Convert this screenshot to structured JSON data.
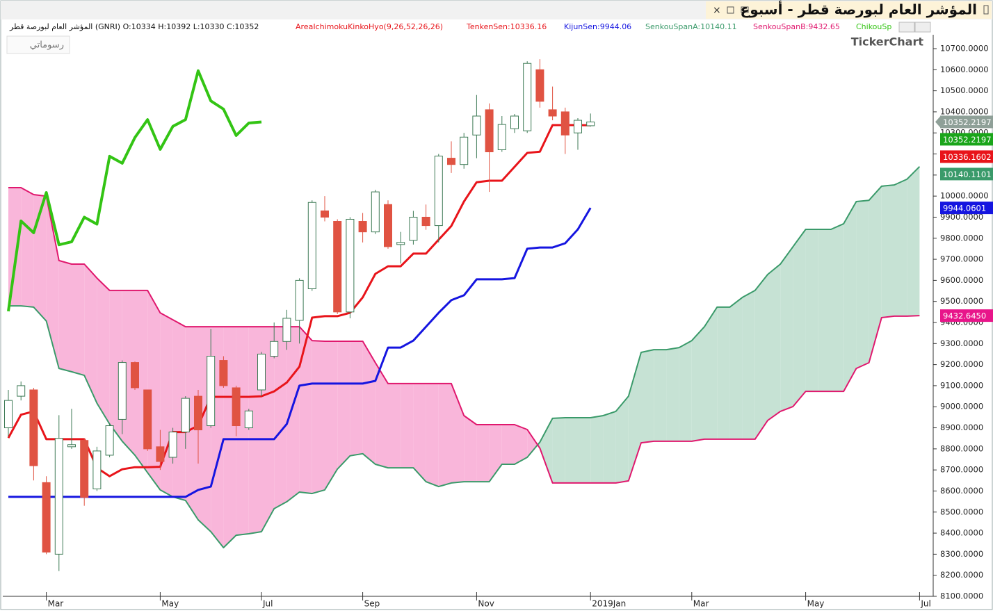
{
  "chart_data": {
    "type": "candlestick",
    "title": "المؤشر العام لبورصة قطر - أسبوع",
    "subtitle": "المؤشر العام لبورصة قطر (GNRI)  O:10334  H:10392  L:10330  C:10352",
    "indicator": "AreaIchimokuKinkoHyo(9,26,52,26,26)",
    "button": "رسوماتي",
    "watermark": "TickerChart",
    "categories": [
      null,
      null,
      null,
      "Mar",
      null,
      null,
      null,
      null,
      null,
      null,
      null,
      null,
      "May",
      null,
      null,
      null,
      null,
      null,
      null,
      null,
      "Jul",
      null,
      null,
      null,
      null,
      null,
      null,
      null,
      "Sep",
      null,
      null,
      null,
      null,
      null,
      null,
      null,
      null,
      "Nov",
      null,
      null,
      null,
      null,
      null,
      null,
      null,
      null,
      "2019Jan",
      null,
      null,
      null,
      null,
      null,
      null,
      null,
      "Mar",
      null,
      null,
      null,
      null,
      null,
      null,
      null,
      null,
      "May",
      null,
      null,
      null,
      null,
      null,
      null,
      null,
      null,
      "Jul"
    ],
    "open": [
      8900,
      9050,
      9080,
      8640,
      8300,
      8810,
      8840,
      8610,
      8770,
      8940,
      9210,
      9080,
      8810,
      8760,
      8880,
      9050,
      8910,
      9220,
      9090,
      8900,
      9080,
      9240,
      9310,
      9410,
      9560,
      9930,
      9880,
      9450,
      9880,
      9830,
      9960,
      9770,
      9790,
      9900,
      9860,
      10180,
      10150,
      10290,
      10410,
      10220,
      10320,
      10310,
      10600,
      10410,
      10400,
      10300,
      10334,
      null,
      null,
      null,
      null,
      null,
      null,
      null,
      null,
      null,
      null,
      null,
      null,
      null,
      null,
      null,
      null,
      null,
      null,
      null,
      null,
      null,
      null,
      null,
      null,
      null,
      null
    ],
    "high": [
      9080,
      9120,
      9090,
      8670,
      8960,
      8990,
      8850,
      8810,
      8920,
      9220,
      9215,
      9080,
      8890,
      8900,
      9050,
      9080,
      9370,
      9240,
      9100,
      8990,
      9260,
      9400,
      9460,
      9610,
      9980,
      10000,
      9890,
      9900,
      9920,
      10030,
      9980,
      9830,
      9930,
      9960,
      10200,
      10260,
      10300,
      10480,
      10440,
      10380,
      10390,
      10640,
      10650,
      10520,
      10420,
      10370,
      10392,
      null,
      null,
      null,
      null,
      null,
      null,
      null,
      null,
      null,
      null,
      null,
      null,
      null,
      null,
      null,
      null,
      null,
      null,
      null,
      null,
      null,
      null,
      null,
      null,
      null,
      null
    ],
    "low": [
      8860,
      9030,
      8650,
      8300,
      8220,
      8800,
      8530,
      8600,
      8760,
      8870,
      9080,
      8790,
      8700,
      8730,
      8800,
      8730,
      8900,
      9090,
      8860,
      8890,
      9050,
      9230,
      9270,
      9300,
      9550,
      9880,
      9440,
      9420,
      9780,
      9820,
      9750,
      9680,
      9770,
      9840,
      9780,
      10110,
      10130,
      10180,
      10020,
      10210,
      10300,
      10300,
      10420,
      10360,
      10200,
      10220,
      10330,
      null,
      null,
      null,
      null,
      null,
      null,
      null,
      null,
      null,
      null,
      null,
      null,
      null,
      null,
      null,
      null,
      null,
      null,
      null,
      null,
      null,
      null,
      null,
      null,
      null,
      null
    ],
    "close": [
      9030,
      9100,
      8720,
      8310,
      8850,
      8820,
      8570,
      8790,
      8910,
      9210,
      9090,
      8800,
      8740,
      8880,
      9040,
      8890,
      9240,
      9100,
      8910,
      8980,
      9250,
      9310,
      9420,
      9600,
      9970,
      9900,
      9450,
      9890,
      9830,
      10020,
      9760,
      9780,
      9900,
      9860,
      10190,
      10150,
      10280,
      10380,
      10210,
      10340,
      10380,
      10630,
      10450,
      10380,
      10290,
      10360,
      10352,
      null,
      null,
      null,
      null,
      null,
      null,
      null,
      null,
      null,
      null,
      null,
      null,
      null,
      null,
      null,
      null,
      null,
      null,
      null,
      null,
      null,
      null,
      null,
      null,
      null,
      null
    ],
    "up_color": "#3d7a55",
    "down_color": "#e05342",
    "series": [
      {
        "name": "TenkenSen:10336.16",
        "color": "#e8141a",
        "width": 3,
        "values": [
          8852,
          8962,
          8978,
          8846,
          8846,
          8846,
          8846,
          8710,
          8670,
          8703,
          8713,
          8713,
          8715,
          8880,
          8880,
          8910,
          9047,
          9047,
          9047,
          9047,
          9050,
          9073,
          9115,
          9190,
          9423,
          9430,
          9430,
          9446,
          9519,
          9631,
          9667,
          9667,
          9727,
          9727,
          9793,
          9858,
          9974,
          10066,
          10073,
          10073,
          10139,
          10205,
          10211,
          10337,
          10337,
          10337,
          10336.16,
          null,
          null,
          null,
          null,
          null,
          null,
          null,
          null,
          null,
          null,
          null,
          null,
          null,
          null,
          null,
          null,
          null,
          null,
          null,
          null,
          null,
          null,
          null,
          null,
          null,
          null
        ]
      },
      {
        "name": "KijunSen:9944.06",
        "color": "#1515e0",
        "width": 3,
        "values": [
          8572,
          8572,
          8572,
          8572,
          8572,
          8572,
          8572,
          8572,
          8572,
          8572,
          8572,
          8572,
          8572,
          8572,
          8572,
          8605,
          8621,
          8846,
          8846,
          8846,
          8846,
          8846,
          8918,
          9100,
          9110,
          9110,
          9110,
          9110,
          9110,
          9123,
          9281,
          9281,
          9314,
          9380,
          9446,
          9506,
          9529,
          9605,
          9605,
          9605,
          9611,
          9750,
          9756,
          9756,
          9776,
          9842,
          9944.06,
          null,
          null,
          null,
          null,
          null,
          null,
          null,
          null,
          null,
          null,
          null,
          null,
          null,
          null,
          null,
          null,
          null,
          null,
          null,
          null,
          null,
          null,
          null,
          null,
          null,
          null
        ]
      },
      {
        "name": "SenkouSpanA:10140.11",
        "color": "#3a9a6a",
        "width": 2,
        "values": [
          9479,
          9479,
          9473,
          9407,
          9182,
          9166,
          9149,
          9017,
          8918,
          8836,
          8770,
          8687,
          8605,
          8572,
          8555,
          8463,
          8407,
          8331,
          8390,
          8397,
          8407,
          8516,
          8549,
          8595,
          8588,
          8605,
          8704,
          8767,
          8777,
          8727,
          8710,
          8710,
          8710,
          8644,
          8621,
          8638,
          8644,
          8644,
          8644,
          8727,
          8727,
          8760,
          8832,
          8945,
          8948,
          8948,
          8948,
          8958,
          8978,
          9050,
          9258,
          9271,
          9271,
          9281,
          9314,
          9380,
          9473,
          9473,
          9519,
          9552,
          9628,
          9677,
          9760,
          9842,
          9842,
          9842,
          9869,
          9974,
          9980,
          10047,
          10053,
          10080,
          10140.11
        ]
      },
      {
        "name": "SenkouSpanB:9432.65",
        "color": "#e0186e",
        "width": 2,
        "values": [
          10040,
          10040,
          10007,
          10000,
          9694,
          9677,
          9677,
          9611,
          9552,
          9552,
          9552,
          9552,
          9446,
          9413,
          9380,
          9380,
          9380,
          9380,
          9380,
          9380,
          9380,
          9380,
          9380,
          9380,
          9314,
          9311,
          9311,
          9311,
          9311,
          9209,
          9110,
          9110,
          9110,
          9110,
          9110,
          9110,
          8958,
          8915,
          8915,
          8915,
          8915,
          8892,
          8803,
          8638,
          8638,
          8638,
          8638,
          8638,
          8638,
          8648,
          8829,
          8836,
          8836,
          8836,
          8836,
          8846,
          8846,
          8846,
          8846,
          8846,
          8935,
          8978,
          9001,
          9073,
          9073,
          9073,
          9073,
          9182,
          9209,
          9423,
          9430,
          9430,
          9432.65
        ]
      },
      {
        "name": "ChikouSp",
        "color": "#33c414",
        "width": 4,
        "values": [
          9453,
          9882,
          9826,
          10017,
          9769,
          9783,
          9900,
          9867,
          10189,
          10156,
          10278,
          10363,
          10222,
          10331,
          10363,
          10595,
          10452,
          10413,
          10288,
          10347,
          10352,
          null,
          null,
          null,
          null,
          null,
          null,
          null,
          null,
          null,
          null,
          null,
          null,
          null,
          null,
          null,
          null,
          null,
          null,
          null,
          null,
          null,
          null,
          null,
          null,
          null,
          null,
          null,
          null,
          null,
          null,
          null,
          null,
          null,
          null,
          null,
          null,
          null,
          null,
          null,
          null,
          null,
          null,
          null,
          null,
          null,
          null,
          null,
          null,
          null,
          null,
          null,
          null
        ]
      }
    ],
    "cloud_colors": {
      "up": "#c6e2d4",
      "down": "#f9b6da"
    },
    "ylim": [
      8100,
      10700
    ],
    "yticks": [
      {
        "value": 8100,
        "label": "8100.0000"
      },
      {
        "value": 8200,
        "label": "8200.0000"
      },
      {
        "value": 8300,
        "label": "8300.0000"
      },
      {
        "value": 8400,
        "label": "8400.0000"
      },
      {
        "value": 8500,
        "label": "8500.0000"
      },
      {
        "value": 8600,
        "label": "8600.0000"
      },
      {
        "value": 8700,
        "label": "8700.0000"
      },
      {
        "value": 8800,
        "label": "8800.0000"
      },
      {
        "value": 8900,
        "label": "8900.0000"
      },
      {
        "value": 9000,
        "label": "9000.0000"
      },
      {
        "value": 9100,
        "label": "9100.0000"
      },
      {
        "value": 9200,
        "label": "9200.0000"
      },
      {
        "value": 9300,
        "label": "9300.0000"
      },
      {
        "value": 9400,
        "label": "9400.0000"
      },
      {
        "value": 9500,
        "label": "9500.0000"
      },
      {
        "value": 9600,
        "label": "9600.0000"
      },
      {
        "value": 9700,
        "label": "9700.0000"
      },
      {
        "value": 9800,
        "label": "9800.0000"
      },
      {
        "value": 9900,
        "label": "9900.0000"
      },
      {
        "value": 10000,
        "label": "10000.0000"
      },
      {
        "value": 10100,
        "label": "10100.0000"
      },
      {
        "value": 10200,
        "label": "10200.0000"
      },
      {
        "value": 10300,
        "label": "10300.0000"
      },
      {
        "value": 10400,
        "label": "10400.0000"
      },
      {
        "value": 10500,
        "label": "10500.0000"
      },
      {
        "value": 10600,
        "label": "10600.0000"
      },
      {
        "value": 10700,
        "label": "10700.0000"
      }
    ],
    "value_tags": [
      {
        "value": 10352.2197,
        "color": "#8fa098"
      },
      {
        "value": 10352.2197,
        "color": "#1aa51a"
      },
      {
        "value": 10336.1602,
        "color": "#e8141a"
      },
      {
        "value": 10140.1101,
        "color": "#3a9a6a"
      },
      {
        "value": 9944.0601,
        "color": "#1515e0"
      },
      {
        "value": 9432.645,
        "label": "9432.6450",
        "color": "#e8158a"
      }
    ]
  }
}
